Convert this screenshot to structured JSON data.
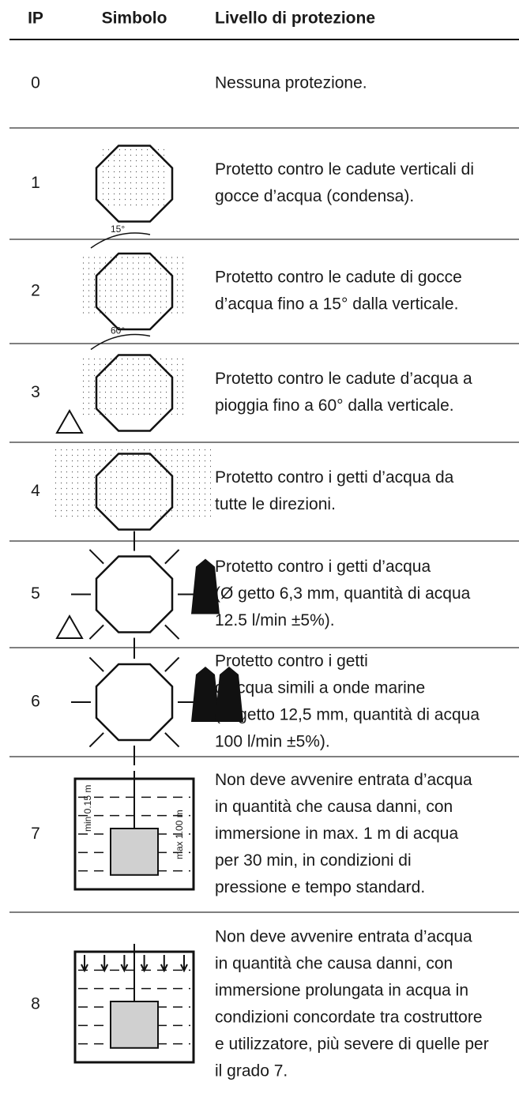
{
  "header": {
    "ip": "IP",
    "symbol": "Simbolo",
    "level": "Livello di protezione"
  },
  "rows": [
    {
      "ip": 0,
      "description": [
        "Nessuna protezione."
      ]
    },
    {
      "ip": 1,
      "description": [
        "Protetto contro le cadute verticali di",
        "gocce d’acqua (condensa)."
      ]
    },
    {
      "ip": 2,
      "symbol_labels": [
        "15°"
      ],
      "description": [
        "Protetto contro le cadute di gocce",
        "d’acqua fino a 15° dalla verticale."
      ]
    },
    {
      "ip": 3,
      "symbol_labels": [
        "60°"
      ],
      "description": [
        "Protetto contro le cadute d’acqua a",
        "pioggia fino a 60° dalla verticale."
      ]
    },
    {
      "ip": 4,
      "description": [
        "Protetto contro i getti d’acqua da",
        "tutte le direzioni."
      ]
    },
    {
      "ip": 5,
      "description": [
        "Protetto contro i getti d’acqua",
        "(Ø getto 6,3 mm, quantità di acqua",
        "12.5 l/min ±5%)."
      ]
    },
    {
      "ip": 6,
      "description": [
        "Protetto contro i getti",
        "d’acqua simili a onde marine",
        "(Ø getto 12,5 mm, quantità di acqua",
        "100 l/min ±5%)."
      ]
    },
    {
      "ip": 7,
      "symbol_labels": [
        "min 0.15 m",
        "max 1.00 m"
      ],
      "description": [
        "Non deve avvenire entrata d’acqua",
        "in quantità che causa danni, con",
        "immersione in max. 1 m di acqua",
        "per 30 min, in condizioni di",
        "pressione e tempo standard."
      ]
    },
    {
      "ip": 8,
      "description": [
        "Non deve avvenire entrata d’acqua",
        "in quantità che causa danni, con",
        "immersione prolungata in acqua in",
        "condizioni concordate tra costruttore",
        "e utilizzatore, più severe di quelle per",
        "il grado 7."
      ]
    }
  ]
}
